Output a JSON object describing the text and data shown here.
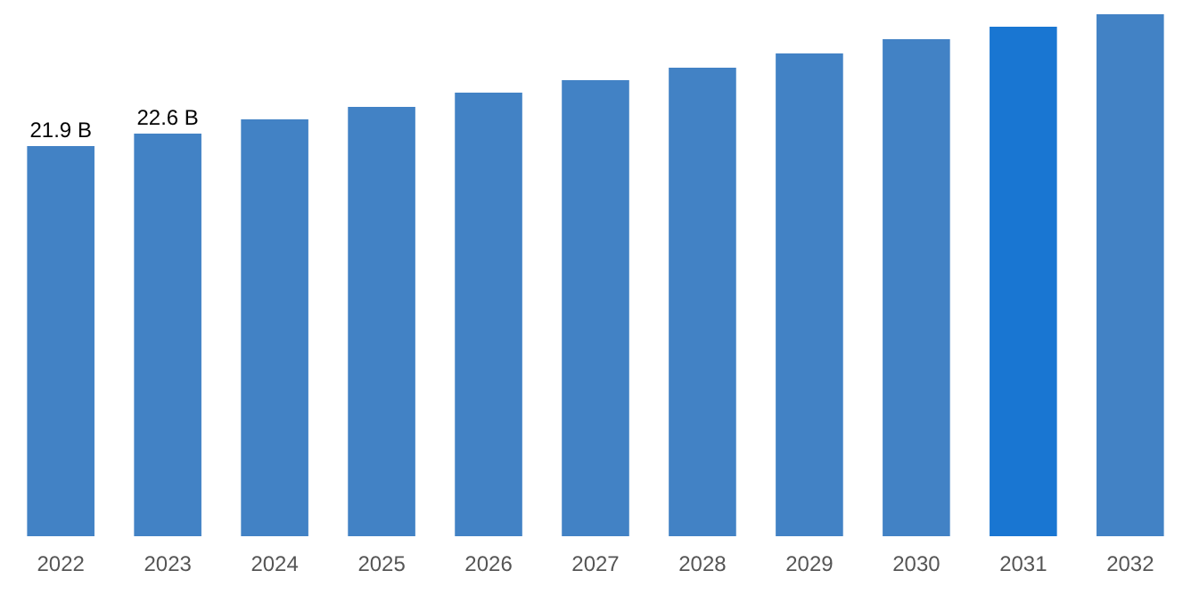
{
  "chart_data": {
    "type": "bar",
    "categories": [
      "2022",
      "2023",
      "2024",
      "2025",
      "2026",
      "2027",
      "2028",
      "2029",
      "2030",
      "2031",
      "2032"
    ],
    "values": [
      21.9,
      22.6,
      23.4,
      24.1,
      24.9,
      25.6,
      26.3,
      27.1,
      27.9,
      28.6,
      29.3
    ],
    "colors": [
      "#4282c5",
      "#4282c5",
      "#4282c5",
      "#4282c5",
      "#4282c5",
      "#4282c5",
      "#4282c5",
      "#4282c5",
      "#4282c5",
      "#1976d2",
      "#4282c5"
    ],
    "value_labels": [
      "21.9 B",
      "22.6 B",
      null,
      null,
      null,
      null,
      null,
      null,
      null,
      null,
      null
    ],
    "ylim": [
      0,
      30.1
    ],
    "grid": false,
    "tick_labels": "x"
  }
}
